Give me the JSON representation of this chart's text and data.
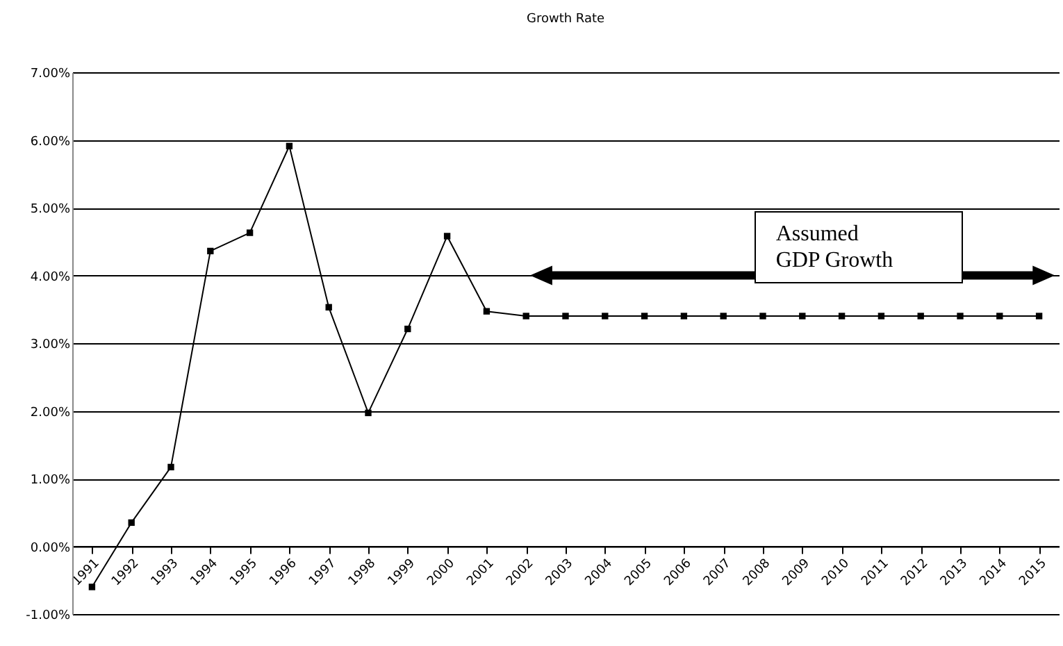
{
  "chart_data": {
    "type": "line",
    "title": "Growth Rate",
    "categories": [
      "1991",
      "1992",
      "1993",
      "1994",
      "1995",
      "1996",
      "1997",
      "1998",
      "1999",
      "2000",
      "2001",
      "2002",
      "2003",
      "2004",
      "2005",
      "2006",
      "2007",
      "2008",
      "2009",
      "2010",
      "2011",
      "2012",
      "2013",
      "2014",
      "2015"
    ],
    "series": [
      {
        "color": "#000000",
        "values": [
          -0.6,
          0.35,
          1.17,
          4.36,
          4.63,
          5.91,
          3.53,
          1.97,
          3.21,
          4.58,
          3.47,
          3.4,
          3.4,
          3.4,
          3.4,
          3.4,
          3.4,
          3.4,
          3.4,
          3.4,
          3.4,
          3.4,
          3.4,
          3.4,
          3.4
        ]
      }
    ],
    "ylim": [
      -1,
      7
    ],
    "yticks": [
      {
        "value": -1,
        "label": "-1.00%"
      },
      {
        "value": 0,
        "label": "0.00%"
      },
      {
        "value": 1,
        "label": "1.00%"
      },
      {
        "value": 2,
        "label": "2.00%"
      },
      {
        "value": 3,
        "label": "3.00%"
      },
      {
        "value": 4,
        "label": "4.00%"
      },
      {
        "value": 5,
        "label": "5.00%"
      },
      {
        "value": 6,
        "label": "6.00%"
      },
      {
        "value": 7,
        "label": "7.00%"
      }
    ],
    "grid": "y",
    "marker": "square",
    "line_style": "solid",
    "legend": false,
    "annotations": [
      "Assumed GDP Growth"
    ]
  }
}
